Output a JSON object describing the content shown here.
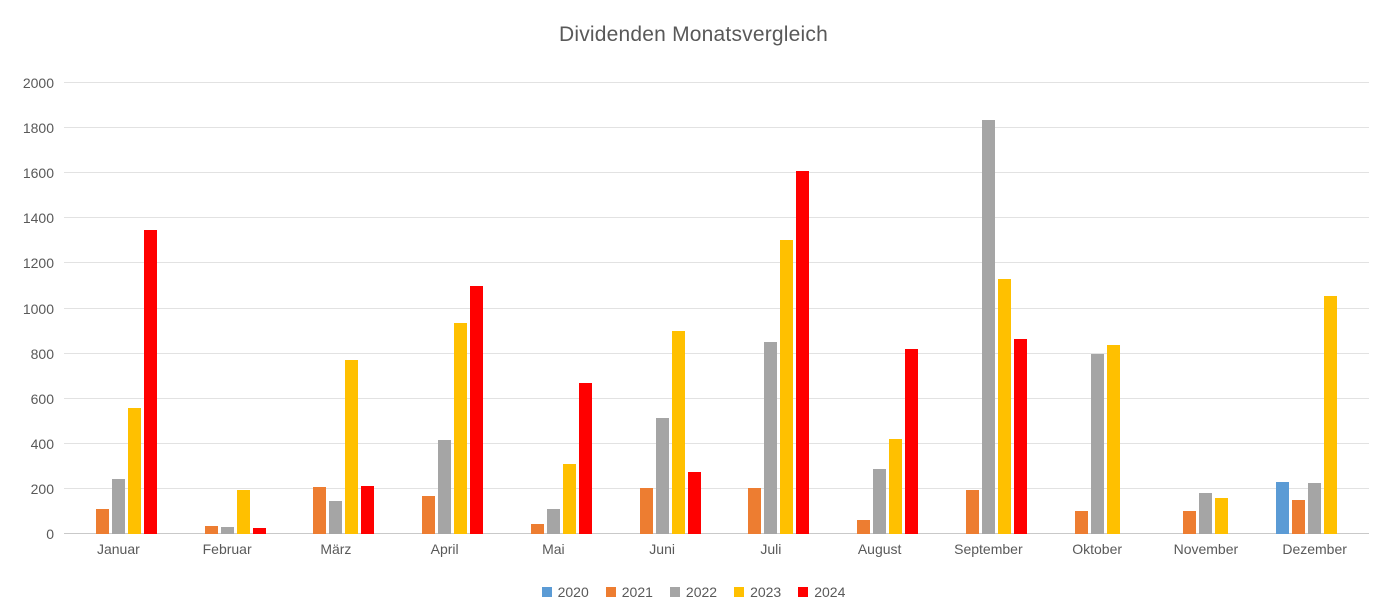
{
  "chart_data": {
    "type": "bar",
    "title": "Dividenden Monatsvergleich",
    "categories": [
      "Januar",
      "Februar",
      "März",
      "April",
      "Mai",
      "Juni",
      "Juli",
      "August",
      "September",
      "Oktober",
      "November",
      "Dezember"
    ],
    "series": [
      {
        "name": "2020",
        "color": "#5B9BD5",
        "values": [
          null,
          null,
          null,
          null,
          null,
          null,
          null,
          null,
          null,
          null,
          null,
          230
        ]
      },
      {
        "name": "2021",
        "color": "#ED7D31",
        "values": [
          110,
          35,
          210,
          170,
          45,
          205,
          205,
          60,
          195,
          100,
          100,
          150
        ]
      },
      {
        "name": "2022",
        "color": "#A5A5A5",
        "values": [
          245,
          30,
          145,
          415,
          110,
          515,
          850,
          290,
          1835,
          800,
          180,
          225
        ]
      },
      {
        "name": "2023",
        "color": "#FFC000",
        "values": [
          560,
          195,
          770,
          935,
          310,
          900,
          1305,
          420,
          1130,
          840,
          160,
          1055
        ]
      },
      {
        "name": "2024",
        "color": "#FF0000",
        "values": [
          1350,
          25,
          215,
          1100,
          670,
          275,
          1610,
          820,
          865,
          null,
          null,
          null
        ]
      }
    ],
    "xlabel": "",
    "ylabel": "",
    "ylim": [
      0,
      2000
    ],
    "ytick_step": 200,
    "grid": true,
    "legend_position": "bottom"
  },
  "colors": {
    "background": "#FFFFFF",
    "gridline": "#E2E2E2",
    "axis_line": "#C9C9C9",
    "text": "#595959"
  }
}
